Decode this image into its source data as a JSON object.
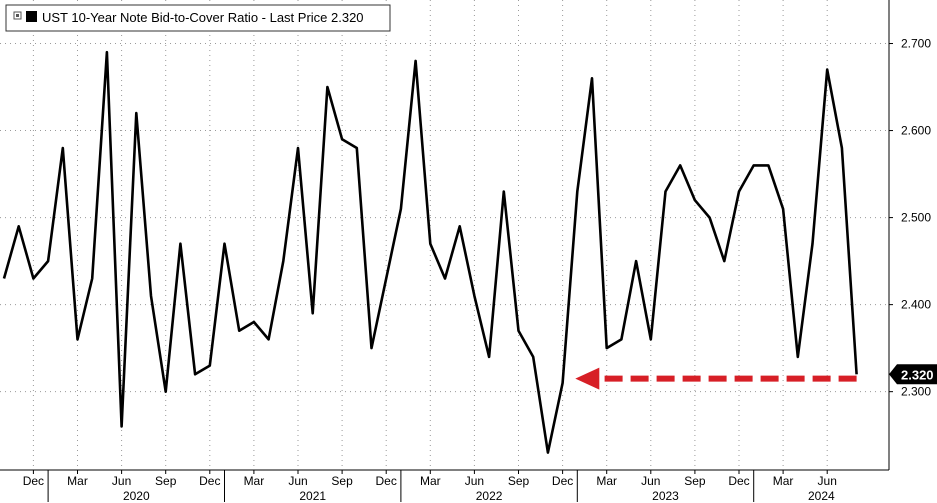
{
  "legend": {
    "title": "UST 10-Year Note Bid-to-Cover Ratio - Last Price 2.320"
  },
  "last_price_label": "2.320",
  "colors": {
    "series": "#000000",
    "arrow": "#d71f26",
    "badge": "#000000"
  },
  "chart_data": {
    "type": "line",
    "title": "UST 10-Year Note Bid-to-Cover Ratio - Last Price 2.320",
    "xlabel": "",
    "ylabel": "",
    "ylim": [
      2.21,
      2.75
    ],
    "y_ticks": [
      "2.300",
      "2.400",
      "2.500",
      "2.600",
      "2.700"
    ],
    "y_tick_values": [
      2.3,
      2.4,
      2.5,
      2.6,
      2.7
    ],
    "x_month_labels": [
      "Dec",
      "Mar",
      "Jun",
      "Sep",
      "Dec",
      "Mar",
      "Jun",
      "Sep",
      "Dec",
      "Mar",
      "Jun",
      "Sep",
      "Dec",
      "Mar",
      "Jun",
      "Sep",
      "Dec",
      "Mar",
      "Jun"
    ],
    "x_year_labels": [
      "2020",
      "2021",
      "2022",
      "2023",
      "2024"
    ],
    "x_start": "2019-10",
    "x_end": "2024-09",
    "dates": [
      "2019-10",
      "2019-11",
      "2019-12",
      "2020-01",
      "2020-02",
      "2020-03",
      "2020-04",
      "2020-05",
      "2020-06",
      "2020-07",
      "2020-08",
      "2020-09",
      "2020-10",
      "2020-11",
      "2020-12",
      "2021-01",
      "2021-02",
      "2021-03",
      "2021-04",
      "2021-05",
      "2021-06",
      "2021-07",
      "2021-08",
      "2021-09",
      "2021-10",
      "2021-11",
      "2021-12",
      "2022-01",
      "2022-02",
      "2022-03",
      "2022-04",
      "2022-05",
      "2022-06",
      "2022-07",
      "2022-08",
      "2022-09",
      "2022-10",
      "2022-11",
      "2022-12",
      "2023-01",
      "2023-02",
      "2023-03",
      "2023-04",
      "2023-05",
      "2023-06",
      "2023-07",
      "2023-08",
      "2023-09",
      "2023-10",
      "2023-11",
      "2023-12",
      "2024-01",
      "2024-02",
      "2024-03",
      "2024-04",
      "2024-05",
      "2024-06",
      "2024-07",
      "2024-08"
    ],
    "values": [
      2.43,
      2.49,
      2.43,
      2.45,
      2.58,
      2.36,
      2.43,
      2.69,
      2.26,
      2.62,
      2.41,
      2.3,
      2.47,
      2.32,
      2.33,
      2.47,
      2.37,
      2.38,
      2.36,
      2.45,
      2.58,
      2.39,
      2.65,
      2.59,
      2.58,
      2.35,
      2.43,
      2.51,
      2.68,
      2.47,
      2.43,
      2.49,
      2.41,
      2.34,
      2.53,
      2.37,
      2.34,
      2.23,
      2.31,
      2.53,
      2.66,
      2.35,
      2.36,
      2.45,
      2.36,
      2.53,
      2.56,
      2.52,
      2.5,
      2.45,
      2.53,
      2.56,
      2.56,
      2.51,
      2.34,
      2.47,
      2.67,
      2.58,
      2.32
    ],
    "annotation": {
      "type": "dashed-arrow",
      "from_date": "2024-08",
      "to_date": "2023-01",
      "value": 2.315
    },
    "grid": true,
    "legend_position": "top-left"
  }
}
